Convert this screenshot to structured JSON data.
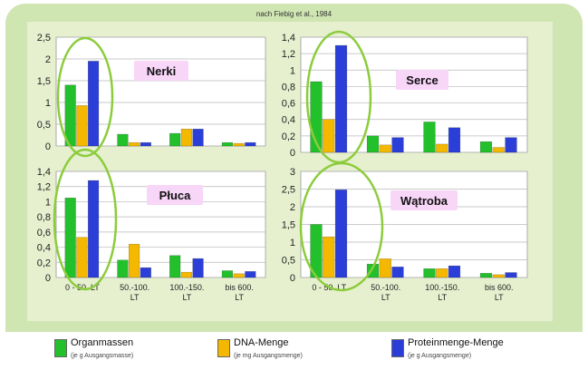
{
  "source_note": "nach Fiebig et al., 1984",
  "legend": [
    {
      "label": "Organmassen",
      "sub": "(je g Ausgangsmasse)",
      "color": "#22c02a"
    },
    {
      "label": "DNA-Menge",
      "sub": "(je mg Ausgangsmenge)",
      "color": "#f5b800"
    },
    {
      "label": "Proteinmenge-Menge",
      "sub": "(je g Ausgangsmenge)",
      "color": "#2b3fd8"
    }
  ],
  "colors": {
    "panel_bg": "#e6f0cf",
    "outer_bg": "#cfe5b2",
    "plot_bg": "#ffffff",
    "ring": "#8ccc3c",
    "title_bg": "#f8d6f8"
  },
  "chart_data": [
    {
      "type": "bar",
      "title": "Nerki",
      "categories": [
        "0 - 50. LT",
        "50.-100. LT",
        "100.-150. LT",
        "bis 600. LT"
      ],
      "series": [
        {
          "name": "Organmassen",
          "values": [
            1.4,
            0.27,
            0.29,
            0.08
          ]
        },
        {
          "name": "DNA-Menge",
          "values": [
            0.93,
            0.08,
            0.39,
            0.06
          ]
        },
        {
          "name": "Proteinmenge-Menge",
          "values": [
            1.95,
            0.08,
            0.39,
            0.08
          ]
        }
      ],
      "ylim": [
        0,
        2.5
      ],
      "yticks": [
        "0",
        "0,5",
        "1",
        "1,5",
        "2",
        "2,5"
      ],
      "grid": true
    },
    {
      "type": "bar",
      "title": "Serce",
      "categories": [
        "0 - 50. LT",
        "50.-100. LT",
        "100.-150. LT",
        "bis 600. LT"
      ],
      "series": [
        {
          "name": "Organmassen",
          "values": [
            0.86,
            0.2,
            0.37,
            0.13
          ]
        },
        {
          "name": "DNA-Menge",
          "values": [
            0.4,
            0.09,
            0.1,
            0.06
          ]
        },
        {
          "name": "Proteinmenge-Menge",
          "values": [
            1.3,
            0.18,
            0.3,
            0.18
          ]
        }
      ],
      "ylim": [
        0,
        1.4
      ],
      "yticks": [
        "0",
        "0,2",
        "0,4",
        "0,6",
        "0,8",
        "1",
        "1,2",
        "1,4"
      ],
      "grid": true
    },
    {
      "type": "bar",
      "title": "Płuca",
      "categories": [
        "0 - 50. LT",
        "50.-100. LT",
        "100.-150. LT",
        "bis 600. LT"
      ],
      "series": [
        {
          "name": "Organmassen",
          "values": [
            1.05,
            0.23,
            0.29,
            0.09
          ]
        },
        {
          "name": "DNA-Menge",
          "values": [
            0.53,
            0.44,
            0.07,
            0.05
          ]
        },
        {
          "name": "Proteinmenge-Menge",
          "values": [
            1.28,
            0.13,
            0.25,
            0.08
          ]
        }
      ],
      "ylim": [
        0,
        1.4
      ],
      "yticks": [
        "0",
        "0,2",
        "0,4",
        "0,6",
        "0,8",
        "1",
        "1,2",
        "1,4"
      ],
      "grid": true
    },
    {
      "type": "bar",
      "title": "Wątroba",
      "categories": [
        "0 - 50. LT",
        "50.-100. LT",
        "100.-150. LT",
        "bis 600. LT"
      ],
      "series": [
        {
          "name": "Organmassen",
          "values": [
            1.5,
            0.38,
            0.25,
            0.12
          ]
        },
        {
          "name": "DNA-Menge",
          "values": [
            1.15,
            0.53,
            0.25,
            0.08
          ]
        },
        {
          "name": "Proteinmenge-Menge",
          "values": [
            2.48,
            0.3,
            0.33,
            0.14
          ]
        }
      ],
      "ylim": [
        0,
        3
      ],
      "yticks": [
        "0",
        "0,5",
        "1",
        "1,5",
        "2",
        "2,5",
        "3"
      ],
      "grid": true
    }
  ]
}
